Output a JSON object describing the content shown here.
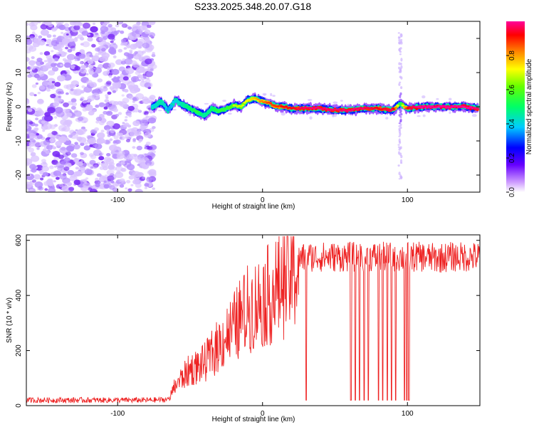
{
  "figure": {
    "title": "S233.2025.348.20.07.G18"
  },
  "chart_data": [
    {
      "type": "heatmap",
      "title": "S233.2025.348.20.07.G18",
      "xlabel": "Height of straight line (km)",
      "ylabel": "Frequency (Hz)",
      "xlim": [
        -163,
        150
      ],
      "ylim": [
        -25,
        25
      ],
      "xticks": [
        -100,
        0,
        100
      ],
      "yticks": [
        -20,
        -10,
        0,
        10,
        20
      ],
      "colorbar": {
        "label": "Normalized spectral amplitude",
        "range": [
          0.0,
          1.0
        ],
        "ticks": [
          0.0,
          0.2,
          0.4,
          0.6,
          0.8
        ]
      },
      "noise_region_x": [
        -163,
        -75
      ],
      "ridge": {
        "x": [
          -75,
          -70,
          -65,
          -60,
          -55,
          -50,
          -45,
          -40,
          -35,
          -30,
          -25,
          -20,
          -15,
          -10,
          -5,
          0,
          5,
          10,
          15,
          20,
          30,
          40,
          50,
          60,
          70,
          80,
          90,
          95,
          100,
          110,
          120,
          130,
          140,
          148
        ],
        "freq": [
          0,
          1.5,
          -1,
          2,
          0.5,
          -0.5,
          -1.5,
          -2.5,
          -0.5,
          -1.5,
          -0.5,
          0.5,
          0,
          2,
          2.5,
          1.5,
          1,
          0,
          0,
          -0.5,
          -0.5,
          -0.5,
          -1,
          -1,
          -0.5,
          -0.5,
          -1,
          1,
          -0.5,
          0,
          0,
          0,
          0,
          -0.5
        ],
        "amplitude": [
          0.4,
          0.45,
          0.35,
          0.4,
          0.45,
          0.5,
          0.55,
          0.45,
          0.5,
          0.55,
          0.55,
          0.6,
          0.6,
          0.65,
          0.7,
          0.75,
          0.8,
          0.8,
          0.85,
          0.85,
          0.9,
          0.9,
          0.9,
          0.9,
          0.9,
          0.85,
          0.9,
          0.5,
          0.85,
          0.95,
          0.95,
          0.95,
          0.95,
          0.9
        ]
      }
    },
    {
      "type": "line",
      "xlabel": "Height of straight line (km)",
      "ylabel": "SNR (10 * v/v)",
      "xlim": [
        -163,
        150
      ],
      "ylim": [
        0,
        620
      ],
      "xticks": [
        -100,
        0,
        100
      ],
      "yticks": [
        0,
        200,
        400,
        600
      ],
      "series": [
        {
          "name": "SNR",
          "color": "#ee2222",
          "envelope_x": [
            -163,
            -120,
            -80,
            -65,
            -60,
            -55,
            -50,
            -45,
            -40,
            -35,
            -30,
            -25,
            -20,
            -15,
            -10,
            -5,
            0,
            5,
            10,
            15,
            20,
            25,
            30,
            40,
            50,
            60,
            70,
            80,
            90,
            100,
            110,
            120,
            130,
            140,
            150
          ],
          "envelope_y": [
            20,
            20,
            20,
            22,
            80,
            110,
            140,
            150,
            165,
            200,
            235,
            270,
            300,
            340,
            375,
            390,
            410,
            430,
            450,
            480,
            510,
            530,
            540,
            540,
            540,
            540,
            540,
            540,
            540,
            540,
            540,
            535,
            540,
            540,
            540
          ],
          "dropout_x": [
            30,
            61,
            64,
            67,
            70,
            73,
            80,
            83,
            86,
            89,
            92,
            98,
            99.5,
            101
          ],
          "dropout_y": 20
        }
      ]
    }
  ],
  "colors": {
    "line": "#ee2222",
    "frame": "#000000",
    "background": "#ffffff",
    "ridge_core": "#ee2244"
  }
}
